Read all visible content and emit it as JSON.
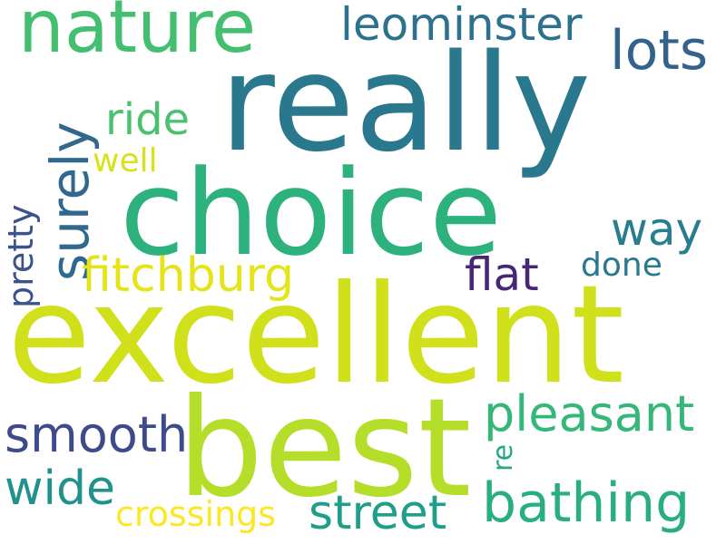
{
  "words": [
    {
      "key": "really",
      "text": "really",
      "color": "#2a788e"
    },
    {
      "key": "choice",
      "text": "choice",
      "color": "#2db27d"
    },
    {
      "key": "excellent",
      "text": "excellent",
      "color": "#d0e11c"
    },
    {
      "key": "best",
      "text": "best",
      "color": "#b5de2b"
    },
    {
      "key": "nature",
      "text": "nature",
      "color": "#44bf70"
    },
    {
      "key": "leominster",
      "text": "leominster",
      "color": "#2c728e"
    },
    {
      "key": "lots",
      "text": "lots",
      "color": "#33638d"
    },
    {
      "key": "surely",
      "text": "surely",
      "color": "#31688e"
    },
    {
      "key": "ride",
      "text": "ride",
      "color": "#4ac16d"
    },
    {
      "key": "well",
      "text": "well",
      "color": "#d8e219"
    },
    {
      "key": "way",
      "text": "way",
      "color": "#287d8e"
    },
    {
      "key": "fitchburg",
      "text": "fitchburg",
      "color": "#e5e419"
    },
    {
      "key": "flat",
      "text": "flat",
      "color": "#482677"
    },
    {
      "key": "done",
      "text": "done",
      "color": "#2a788e"
    },
    {
      "key": "pretty",
      "text": "pretty",
      "color": "#3b528b"
    },
    {
      "key": "pleasant",
      "text": "pleasant",
      "color": "#35b779"
    },
    {
      "key": "smooth",
      "text": "smooth",
      "color": "#3e4a89"
    },
    {
      "key": "re",
      "text": "re",
      "color": "#22a884"
    },
    {
      "key": "wide",
      "text": "wide",
      "color": "#21918c"
    },
    {
      "key": "bathing",
      "text": "bathing",
      "color": "#29af7f"
    },
    {
      "key": "crossings",
      "text": "crossings",
      "color": "#fde725"
    },
    {
      "key": "street",
      "text": "street",
      "color": "#1f9e89"
    }
  ]
}
